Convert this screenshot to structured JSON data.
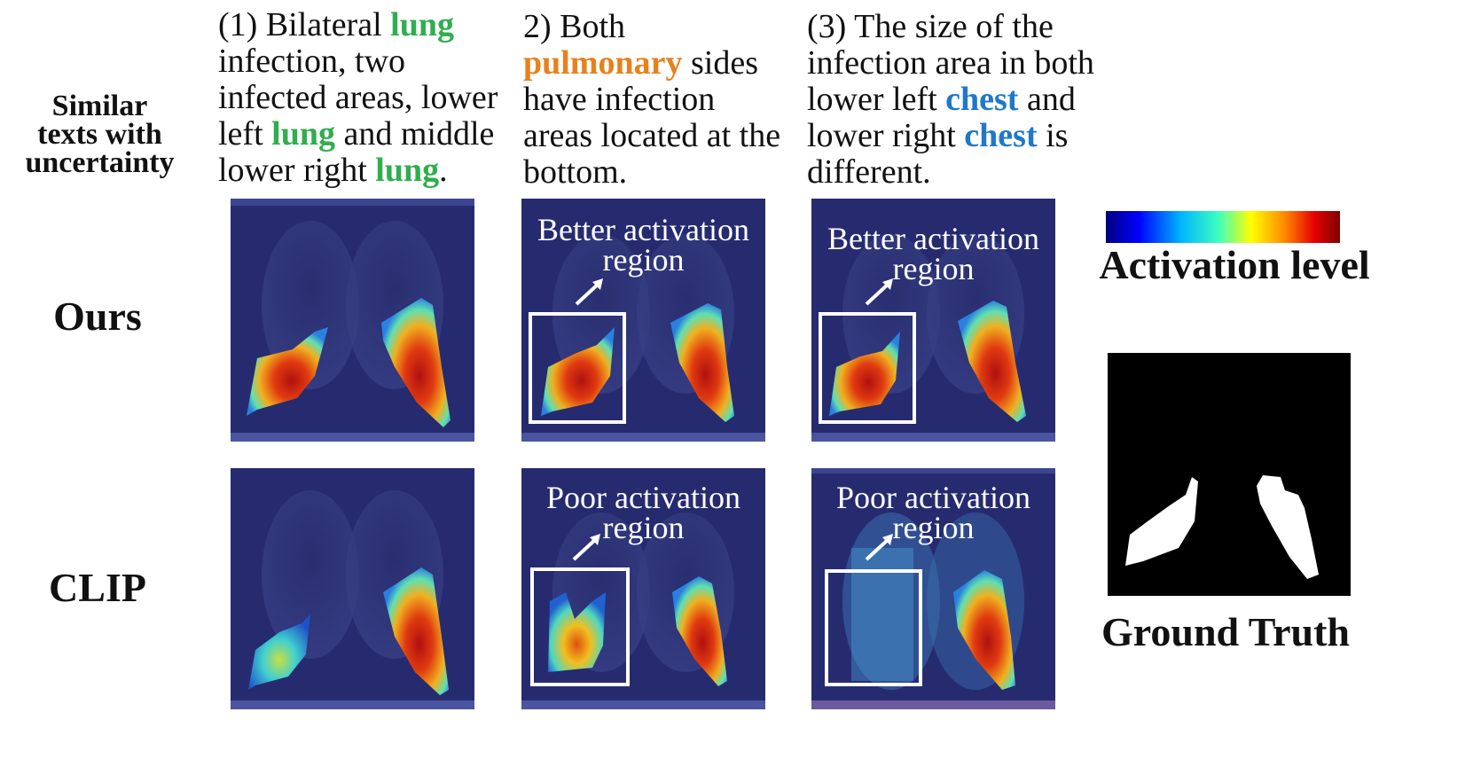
{
  "row_header": {
    "line1": "Similar",
    "line2": "texts with",
    "line3": "uncertainty"
  },
  "rows": {
    "ours": "Ours",
    "clip": "CLIP"
  },
  "captions": {
    "c1": {
      "p1": "(1) Bilateral ",
      "k1": "lung",
      "p2": " infection, two infected areas, lower left ",
      "k2": "lung",
      "p3": " and middle lower right ",
      "k3": "lung",
      "p4": "."
    },
    "c2": {
      "p1": "2) Both ",
      "k1": "pulmonary",
      "p2": " sides have infection areas located at the bottom."
    },
    "c3": {
      "p1": "(3) The size of the infection area in both lower left ",
      "k1": "chest",
      "p2": " and lower right ",
      "k2": "chest",
      "p3": " is different."
    }
  },
  "annotations": {
    "better_l1": "Better activation",
    "better_l2": "region",
    "poor_l1": "Poor activation",
    "poor_l2": "region"
  },
  "colorbar": {
    "label": "Activation level",
    "colors": [
      "#00007f",
      "#0000ff",
      "#00b4ff",
      "#3cffc0",
      "#ffff00",
      "#ff8c00",
      "#e60000",
      "#7f0000"
    ]
  },
  "ground_truth": {
    "label": "Ground Truth"
  }
}
